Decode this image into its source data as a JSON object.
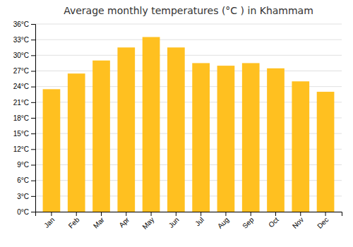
{
  "chart_data": {
    "type": "bar",
    "title": "Average monthly temperatures (°C ) in Khammam",
    "categories": [
      "Jan",
      "Feb",
      "Mar",
      "Apr",
      "May",
      "Jun",
      "Jul",
      "Aug",
      "Sep",
      "Oct",
      "Nov",
      "Dec"
    ],
    "values": [
      23.5,
      26.5,
      29.0,
      31.5,
      33.5,
      31.5,
      28.5,
      28.0,
      28.5,
      27.5,
      25.0,
      23.0
    ],
    "color": "#FFC020",
    "ylim": [
      0,
      36
    ],
    "yticks": [
      {
        "value": 0,
        "label": "0°C"
      },
      {
        "value": 3,
        "label": "3°C"
      },
      {
        "value": 6,
        "label": "6°C"
      },
      {
        "value": 9,
        "label": "9°C"
      },
      {
        "value": 12,
        "label": "12°C"
      },
      {
        "value": 15,
        "label": "15°C"
      },
      {
        "value": 18,
        "label": "18°C"
      },
      {
        "value": 21,
        "label": "21°C"
      },
      {
        "value": 24,
        "label": "24°C"
      },
      {
        "value": 27,
        "label": "27°C"
      },
      {
        "value": 30,
        "label": "30°C"
      },
      {
        "value": 33,
        "label": "33°C"
      },
      {
        "value": 36,
        "label": "36°C"
      }
    ],
    "grid": true
  }
}
